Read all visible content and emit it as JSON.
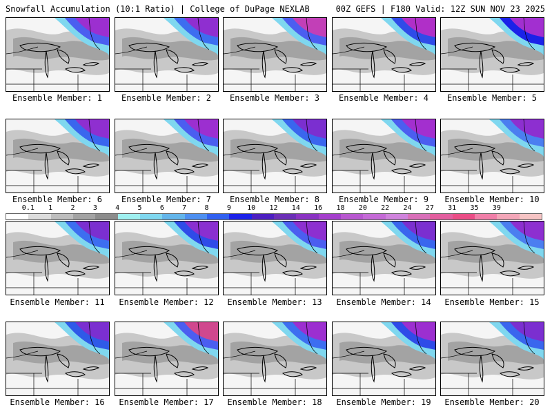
{
  "header": {
    "left": "Snowfall Accumulation (10:1 Ratio) | College of DuPage NEXLAB",
    "right": "00Z GEFS | F180 Valid: 12Z SUN NOV 23 2025"
  },
  "legend": {
    "ticks": [
      "0.1",
      "1",
      "2",
      "3",
      "4",
      "5",
      "6",
      "7",
      "8",
      "9",
      "10",
      "12",
      "14",
      "16",
      "18",
      "20",
      "22",
      "24",
      "27",
      "31",
      "35",
      "39"
    ],
    "colors": [
      "#ffffff",
      "#dcdcdc",
      "#bdbdbd",
      "#a3a3a3",
      "#8c8c8c",
      "#9ff0f0",
      "#7fd7ef",
      "#63b5ea",
      "#4d8ff0",
      "#3060f0",
      "#1b22e8",
      "#4c1fc0",
      "#6b2fb6",
      "#8a33c2",
      "#a43fcc",
      "#b757cf",
      "#c46ad6",
      "#cf83dc",
      "#d86fb8",
      "#e25e9e",
      "#ea4d86",
      "#f07fa8",
      "#f3a6b8",
      "#f6c4c4"
    ]
  },
  "panels": [
    {
      "label": "Ensemble Member: 1",
      "accent": "#9c2fd0",
      "secondary": "#4b5ef0"
    },
    {
      "label": "Ensemble Member: 2",
      "accent": "#8f2fd0",
      "secondary": "#3d6ef0"
    },
    {
      "label": "Ensemble Member: 3",
      "accent": "#c23fb7",
      "secondary": "#4b5ef0"
    },
    {
      "label": "Ensemble Member: 4",
      "accent": "#b02fc8",
      "secondary": "#2f4be8"
    },
    {
      "label": "Ensemble Member: 5",
      "accent": "#a22fd0",
      "secondary": "#1b22e8"
    },
    {
      "label": "Ensemble Member: 6",
      "accent": "#8f2fd0",
      "secondary": "#3a66ee"
    },
    {
      "label": "Ensemble Member: 7",
      "accent": "#9c2fd0",
      "secondary": "#4b5ef0"
    },
    {
      "label": "Ensemble Member: 8",
      "accent": "#7b2fd0",
      "secondary": "#3a66ee"
    },
    {
      "label": "Ensemble Member: 9",
      "accent": "#a32fcf",
      "secondary": "#4b5ef0"
    },
    {
      "label": "Ensemble Member: 10",
      "accent": "#8d2fd0",
      "secondary": "#4b7ef0"
    },
    {
      "label": "Ensemble Member: 11",
      "accent": "#7b2fd0",
      "secondary": "#3d6ef0"
    },
    {
      "label": "Ensemble Member: 12",
      "accent": "#8a2fd0",
      "secondary": "#2f4be8"
    },
    {
      "label": "Ensemble Member: 13",
      "accent": "#8d2fd0",
      "secondary": "#4b5ef0"
    },
    {
      "label": "Ensemble Member: 14",
      "accent": "#7b2fd0",
      "secondary": "#3a66ee"
    },
    {
      "label": "Ensemble Member: 15",
      "accent": "#8d2fd0",
      "secondary": "#4b7ef0"
    },
    {
      "label": "Ensemble Member: 16",
      "accent": "#7b2fd0",
      "secondary": "#2f5ae8"
    },
    {
      "label": "Ensemble Member: 17",
      "accent": "#d0488e",
      "secondary": "#4b5ef0"
    },
    {
      "label": "Ensemble Member: 18",
      "accent": "#9c2fd0",
      "secondary": "#3d6ef0"
    },
    {
      "label": "Ensemble Member: 19",
      "accent": "#9c2fd0",
      "secondary": "#2f4be8"
    },
    {
      "label": "Ensemble Member: 20",
      "accent": "#7b2fd0",
      "secondary": "#3a66ee"
    }
  ]
}
